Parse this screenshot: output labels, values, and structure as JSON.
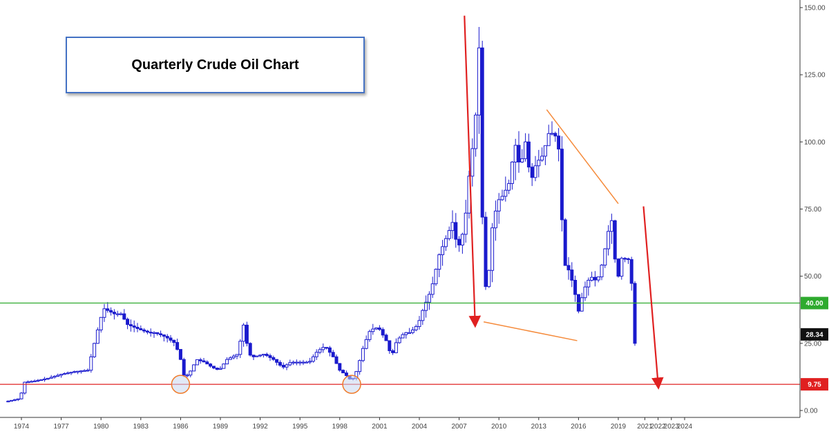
{
  "chart_data": {
    "type": "candlestick",
    "title": "Quarterly Crude Oil Chart",
    "ylim": [
      0,
      150
    ],
    "y_ticks": [
      "0.00",
      "25.00",
      "50.00",
      "75.00",
      "100.00",
      "125.00",
      "150.00"
    ],
    "y_tick_values": [
      0,
      25,
      50,
      75,
      100,
      125,
      150
    ],
    "x_ticks": [
      "1974",
      "1977",
      "1980",
      "1983",
      "1986",
      "1989",
      "1992",
      "1995",
      "1998",
      "2001",
      "2004",
      "2007",
      "2010",
      "2013",
      "2016",
      "2019",
      "2021",
      "2022",
      "2023",
      "2024"
    ],
    "x_tick_years": [
      1974,
      1977,
      1980,
      1983,
      1986,
      1989,
      1992,
      1995,
      1998,
      2001,
      2004,
      2007,
      2010,
      2013,
      2016,
      2019,
      2021,
      2022,
      2023,
      2024
    ],
    "series_color": "#1a1acd",
    "levels": [
      {
        "label": "40.00",
        "value": 40,
        "color": "#2eaa2e"
      },
      {
        "label": "9.75",
        "value": 9.75,
        "color": "#e02020"
      }
    ],
    "last_price": {
      "label": "28.34",
      "value": 28.34
    },
    "anchors": [
      [
        1973.0,
        3.5
      ],
      [
        1973.9,
        4.5
      ],
      [
        1974.2,
        10.5
      ],
      [
        1975,
        11
      ],
      [
        1976,
        12
      ],
      [
        1977,
        13.5
      ],
      [
        1978,
        14.5
      ],
      [
        1979,
        15
      ],
      [
        1979.5,
        25
      ],
      [
        1979.9,
        33
      ],
      [
        1980.2,
        38
      ],
      [
        1980.6,
        37
      ],
      [
        1981,
        36
      ],
      [
        1981.5,
        36
      ],
      [
        1982,
        32
      ],
      [
        1982.5,
        31
      ],
      [
        1983,
        30
      ],
      [
        1983.6,
        29
      ],
      [
        1984,
        29
      ],
      [
        1984.6,
        28
      ],
      [
        1985,
        27
      ],
      [
        1985.6,
        25
      ],
      [
        1986.0,
        19
      ],
      [
        1986.3,
        12
      ],
      [
        1986.8,
        15
      ],
      [
        1987.2,
        19
      ],
      [
        1987.8,
        18
      ],
      [
        1988.4,
        16
      ],
      [
        1988.9,
        15
      ],
      [
        1989.5,
        19
      ],
      [
        1990.3,
        21
      ],
      [
        1990.8,
        33
      ],
      [
        1991.1,
        21
      ],
      [
        1991.5,
        20
      ],
      [
        1992.3,
        21
      ],
      [
        1993,
        19
      ],
      [
        1993.7,
        16
      ],
      [
        1994.3,
        18
      ],
      [
        1995,
        18
      ],
      [
        1995.7,
        18
      ],
      [
        1996.3,
        22
      ],
      [
        1996.9,
        24
      ],
      [
        1997.5,
        20
      ],
      [
        1998.0,
        15
      ],
      [
        1998.5,
        13
      ],
      [
        1998.9,
        11
      ],
      [
        1999.3,
        15
      ],
      [
        1999.8,
        24
      ],
      [
        2000.3,
        30
      ],
      [
        2000.9,
        31
      ],
      [
        2001.5,
        26
      ],
      [
        2001.9,
        20
      ],
      [
        2002.3,
        26
      ],
      [
        2002.9,
        29
      ],
      [
        2003.3,
        29
      ],
      [
        2003.9,
        32
      ],
      [
        2004.3,
        38
      ],
      [
        2004.9,
        45
      ],
      [
        2005.5,
        58
      ],
      [
        2006.0,
        64
      ],
      [
        2006.5,
        70
      ],
      [
        2006.9,
        60
      ],
      [
        2007.4,
        68
      ],
      [
        2007.8,
        90
      ],
      [
        2008.2,
        105
      ],
      [
        2008.5,
        135
      ],
      [
        2008.65,
        100
      ],
      [
        2008.85,
        44
      ],
      [
        2009.2,
        49
      ],
      [
        2009.5,
        68
      ],
      [
        2009.9,
        78
      ],
      [
        2010.3,
        80
      ],
      [
        2010.8,
        85
      ],
      [
        2011.2,
        100
      ],
      [
        2011.6,
        90
      ],
      [
        2012.0,
        100
      ],
      [
        2012.4,
        85
      ],
      [
        2012.8,
        92
      ],
      [
        2013.3,
        95
      ],
      [
        2013.8,
        104
      ],
      [
        2014.3,
        102
      ],
      [
        2014.6,
        95
      ],
      [
        2014.85,
        55
      ],
      [
        2015.3,
        52
      ],
      [
        2015.7,
        45
      ],
      [
        2015.95,
        36
      ],
      [
        2016.4,
        45
      ],
      [
        2016.9,
        50
      ],
      [
        2017.4,
        48
      ],
      [
        2017.8,
        55
      ],
      [
        2018.3,
        68
      ],
      [
        2018.6,
        72
      ],
      [
        2018.85,
        46
      ],
      [
        2019.3,
        58
      ],
      [
        2019.7,
        55
      ],
      [
        2019.95,
        61
      ],
      [
        2020.1,
        20
      ],
      [
        2020.35,
        28.34
      ]
    ],
    "annotations": [
      {
        "type": "circle",
        "x": 1986.0,
        "y": 9.75
      },
      {
        "type": "circle",
        "x": 1998.9,
        "y": 9.75
      },
      {
        "type": "arrow",
        "from": [
          2007.4,
          147
        ],
        "to": [
          2008.2,
          33
        ]
      },
      {
        "type": "arrow",
        "from": [
          2020.9,
          76
        ],
        "to": [
          2022.0,
          10
        ]
      },
      {
        "type": "line",
        "from": [
          2013.6,
          112
        ],
        "to": [
          2019.0,
          77
        ]
      },
      {
        "type": "line",
        "from": [
          2008.85,
          33
        ],
        "to": [
          2015.9,
          26
        ]
      }
    ]
  }
}
